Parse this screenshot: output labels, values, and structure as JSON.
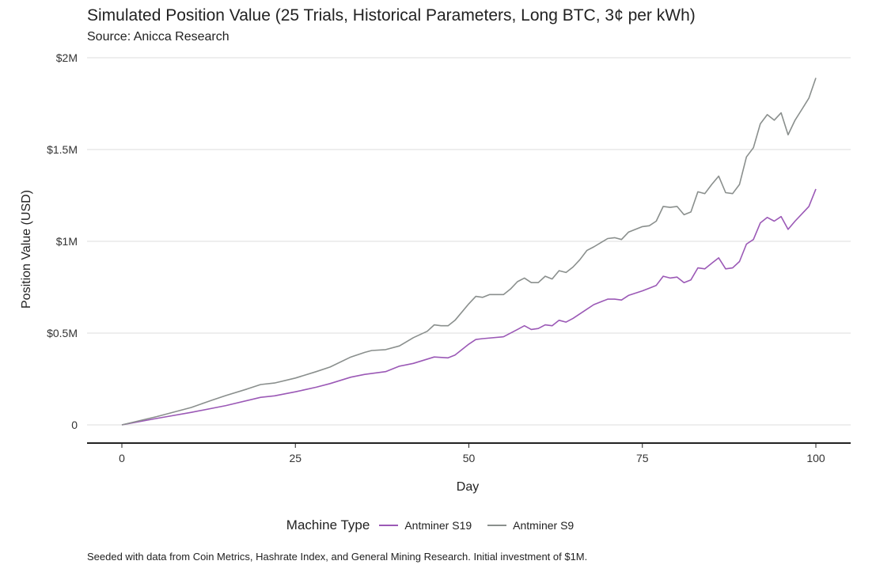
{
  "chart_data": {
    "type": "line",
    "title": "Simulated Position Value (25 Trials, Historical Parameters, Long BTC, 3¢ per kWh)",
    "subtitle": "Source: Anicca Research",
    "xlabel": "Day",
    "ylabel": "Position Value (USD)",
    "xlim": [
      0,
      100
    ],
    "ylim": [
      0,
      2000000
    ],
    "x_ticks": [
      0,
      25,
      50,
      75,
      100
    ],
    "x_tick_labels": [
      "0",
      "25",
      "50",
      "75",
      "100"
    ],
    "y_ticks": [
      0,
      500000,
      1000000,
      1500000,
      2000000
    ],
    "y_tick_labels": [
      "0",
      "$0.5M",
      "$1M",
      "$1.5M",
      "$2M"
    ],
    "grid": true,
    "legend_title": "Machine Type",
    "legend_position": "bottom",
    "caption": "Seeded with data from Coin Metrics, Hashrate Index, and General Mining Research. Initial investment of $1M.",
    "series": [
      {
        "name": "Antminer S19",
        "color": "#9b59b6",
        "x": [
          0,
          5,
          10,
          15,
          20,
          22,
          25,
          28,
          30,
          33,
          35,
          38,
          40,
          42,
          45,
          47,
          48,
          50,
          51,
          52,
          55,
          57,
          58,
          59,
          60,
          61,
          62,
          63,
          64,
          65,
          67,
          68,
          70,
          71,
          72,
          73,
          75,
          76,
          77,
          78,
          79,
          80,
          81,
          82,
          83,
          84,
          85,
          86,
          87,
          88,
          89,
          90,
          91,
          92,
          93,
          94,
          95,
          96,
          97,
          98,
          99,
          100
        ],
        "values": [
          0,
          35000,
          68000,
          105000,
          150000,
          158000,
          180000,
          205000,
          225000,
          260000,
          275000,
          290000,
          320000,
          335000,
          370000,
          365000,
          380000,
          440000,
          465000,
          470000,
          480000,
          520000,
          540000,
          520000,
          525000,
          545000,
          540000,
          570000,
          560000,
          580000,
          630000,
          655000,
          685000,
          685000,
          680000,
          705000,
          730000,
          745000,
          760000,
          810000,
          800000,
          805000,
          775000,
          790000,
          855000,
          850000,
          880000,
          910000,
          850000,
          855000,
          890000,
          985000,
          1010000,
          1100000,
          1130000,
          1110000,
          1135000,
          1065000,
          1110000,
          1150000,
          1190000,
          1285000
        ]
      },
      {
        "name": "Antminer S9",
        "color": "#8a8f8d",
        "x": [
          0,
          5,
          10,
          13,
          15,
          18,
          20,
          22,
          25,
          28,
          30,
          33,
          35,
          36,
          38,
          40,
          42,
          44,
          45,
          46,
          47,
          48,
          50,
          51,
          52,
          53,
          55,
          56,
          57,
          58,
          59,
          60,
          61,
          62,
          63,
          64,
          65,
          66,
          67,
          68,
          70,
          71,
          72,
          73,
          75,
          76,
          77,
          78,
          79,
          80,
          81,
          82,
          83,
          84,
          85,
          86,
          87,
          88,
          89,
          90,
          91,
          92,
          93,
          94,
          95,
          96,
          97,
          98,
          99,
          100
        ],
        "values": [
          0,
          45000,
          95000,
          135000,
          160000,
          195000,
          220000,
          228000,
          255000,
          290000,
          315000,
          370000,
          395000,
          405000,
          410000,
          430000,
          475000,
          510000,
          545000,
          540000,
          540000,
          570000,
          660000,
          700000,
          695000,
          710000,
          710000,
          740000,
          780000,
          800000,
          775000,
          775000,
          810000,
          795000,
          840000,
          830000,
          860000,
          900000,
          950000,
          970000,
          1015000,
          1020000,
          1010000,
          1050000,
          1080000,
          1085000,
          1110000,
          1190000,
          1185000,
          1190000,
          1145000,
          1160000,
          1270000,
          1260000,
          1310000,
          1355000,
          1265000,
          1260000,
          1310000,
          1460000,
          1510000,
          1640000,
          1690000,
          1660000,
          1700000,
          1580000,
          1660000,
          1720000,
          1780000,
          1890000
        ]
      }
    ]
  }
}
